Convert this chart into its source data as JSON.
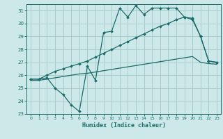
{
  "title": "",
  "xlabel": "Humidex (Indice chaleur)",
  "bg_color": "#cce8e8",
  "grid_color": "#aacccc",
  "line_color": "#1a6b6b",
  "xlim": [
    -0.5,
    23.5
  ],
  "ylim": [
    23,
    31.5
  ],
  "yticks": [
    23,
    24,
    25,
    26,
    27,
    28,
    29,
    30,
    31
  ],
  "xticks": [
    0,
    1,
    2,
    3,
    4,
    5,
    6,
    7,
    8,
    9,
    10,
    11,
    12,
    13,
    14,
    15,
    16,
    17,
    18,
    19,
    20,
    21,
    22,
    23
  ],
  "line1_x": [
    0,
    1,
    2,
    3,
    4,
    5,
    6,
    7,
    8,
    9,
    10,
    11,
    12,
    13,
    14,
    15,
    16,
    17,
    18,
    19,
    20,
    21,
    22,
    23
  ],
  "line1_y": [
    25.7,
    25.7,
    25.8,
    25.0,
    24.5,
    23.7,
    23.2,
    26.7,
    25.6,
    29.3,
    29.4,
    31.2,
    30.5,
    31.4,
    30.7,
    31.2,
    31.2,
    31.2,
    31.2,
    30.5,
    30.3,
    29.0,
    27.1,
    27.0
  ],
  "line2_x": [
    0,
    1,
    2,
    3,
    4,
    5,
    6,
    7,
    8,
    9,
    10,
    11,
    12,
    13,
    14,
    15,
    16,
    17,
    18,
    19,
    20,
    21,
    22,
    23
  ],
  "line2_y": [
    25.7,
    25.7,
    26.0,
    26.3,
    26.5,
    26.7,
    26.9,
    27.1,
    27.4,
    27.7,
    28.0,
    28.3,
    28.6,
    28.9,
    29.2,
    29.5,
    29.8,
    30.0,
    30.3,
    30.5,
    30.4,
    29.0,
    27.1,
    27.0
  ],
  "line3_x": [
    0,
    1,
    2,
    3,
    4,
    5,
    6,
    7,
    8,
    9,
    10,
    11,
    12,
    13,
    14,
    15,
    16,
    17,
    18,
    19,
    20,
    21,
    22,
    23
  ],
  "line3_y": [
    25.6,
    25.6,
    25.7,
    25.8,
    25.9,
    26.0,
    26.1,
    26.15,
    26.25,
    26.35,
    26.45,
    26.55,
    26.65,
    26.75,
    26.85,
    26.95,
    27.05,
    27.15,
    27.25,
    27.35,
    27.45,
    27.0,
    26.9,
    26.85
  ]
}
